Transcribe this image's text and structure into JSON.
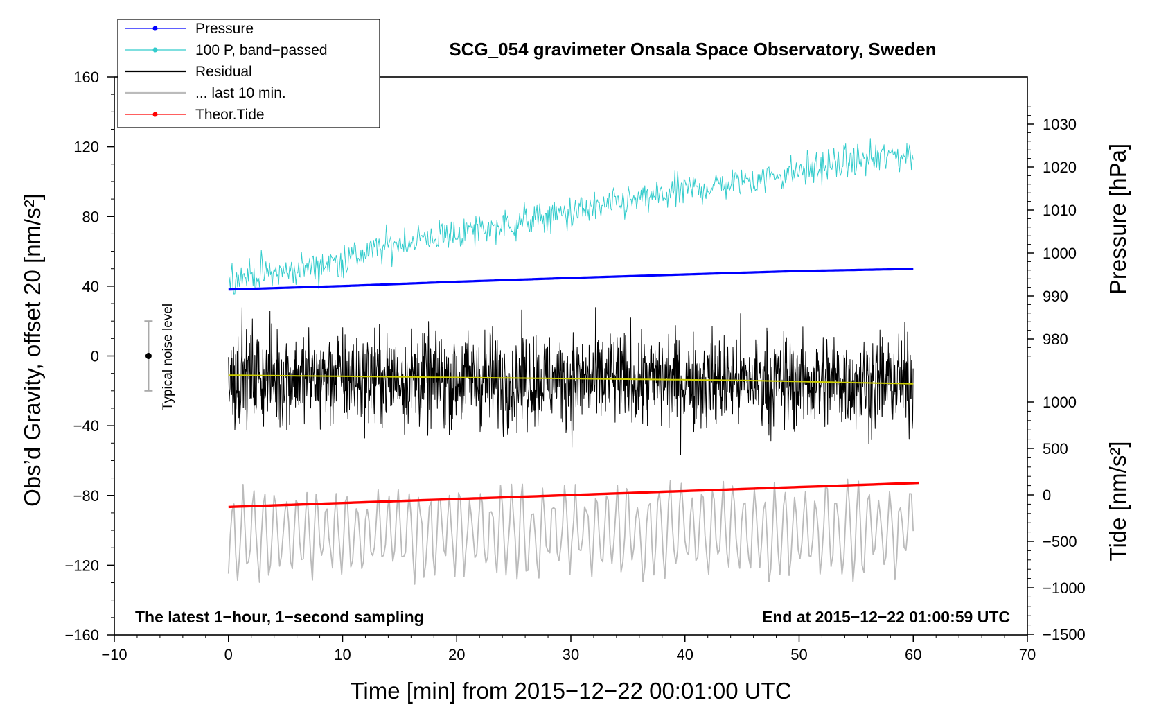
{
  "chart_data": {
    "type": "line",
    "title": "SCG_054 gravimeter Onsala Space Observatory, Sweden",
    "xlabel": "Time [min] from 2015−12−22 00:01:00 UTC",
    "ylabel": "Obs’d Gravity, offset 20 [nm/s²]",
    "xlim": [
      -10,
      70
    ],
    "ylim": [
      -160,
      160
    ],
    "x_ticks": [
      "−10",
      "0",
      "10",
      "20",
      "30",
      "40",
      "50",
      "60",
      "70"
    ],
    "y_ticks": [
      "160",
      "120",
      "80",
      "40",
      "0",
      "−40",
      "−80",
      "−120",
      "−160"
    ],
    "pressure_axis": {
      "label": "Pressure [hPa]",
      "ticks": [
        "1030",
        "1020",
        "1010",
        "1000",
        "990",
        "980"
      ],
      "values": [
        1030,
        1020,
        1010,
        1000,
        990,
        980
      ]
    },
    "tide_axis": {
      "label": "Tide [nm/s²]",
      "ticks": [
        "1000",
        "500",
        "0",
        "−500",
        "−1000",
        "−1500"
      ],
      "values": [
        1000,
        500,
        0,
        -500,
        -1000,
        -1500
      ]
    },
    "legend": [
      {
        "name": "Pressure",
        "color": "#0000ff",
        "marker": true
      },
      {
        "name": "100 P, band−passed",
        "color": "#33cccc",
        "marker": true
      },
      {
        "name": "Residual",
        "color": "#000000",
        "marker": false
      },
      {
        "name": "... last 10 min.",
        "color": "#bbbbbb",
        "marker": false
      },
      {
        "name": "Theor.Tide",
        "color": "#ff0000",
        "marker": true
      }
    ],
    "annotations": {
      "left": "The latest 1−hour, 1−second sampling",
      "right": "End at 2015−12−22 01:00:59 UTC",
      "noise": "Typical noise level"
    },
    "noise_bar": {
      "x": -7,
      "y": 0,
      "ymin": -20,
      "ymax": 20
    },
    "series": [
      {
        "name": "Pressure",
        "axis": "pressure_hPa",
        "color": "#0000ff",
        "x": [
          0,
          10,
          20,
          30,
          40,
          50,
          60
        ],
        "values": [
          991.5,
          992.3,
          993.3,
          994.2,
          995.0,
          995.8,
          996.3
        ]
      },
      {
        "name": "100 P, band−passed",
        "axis": "gravity_nm_s2",
        "color": "#33cccc",
        "x": [
          0,
          5,
          10,
          15,
          20,
          25,
          30,
          35,
          40,
          45,
          50,
          55,
          60
        ],
        "values": [
          45,
          48,
          55,
          65,
          70,
          76,
          82,
          88,
          95,
          100,
          106,
          112,
          116
        ],
        "noise_amplitude": 8
      },
      {
        "name": "Residual",
        "axis": "gravity_nm_s2",
        "color": "#000000",
        "x": [
          0,
          60
        ],
        "values": [
          -12,
          -15
        ],
        "noise_amplitude": 25
      },
      {
        "name": "Residual smoothed",
        "axis": "gravity_nm_s2",
        "color": "#cccc00",
        "x": [
          0,
          15,
          30,
          45,
          60
        ],
        "values": [
          -11,
          -12,
          -13,
          -14,
          -16
        ]
      },
      {
        "name": "... last 10 min.",
        "axis": "gravity_nm_s2",
        "color": "#bbbbbb",
        "x": [
          0,
          60
        ],
        "values": [
          -102,
          -100
        ],
        "noise_amplitude": 22
      },
      {
        "name": "Theor.Tide",
        "axis": "tide_nm_s2",
        "color": "#ff0000",
        "x": [
          0,
          60.5
        ],
        "values": [
          -130,
          130
        ]
      }
    ]
  }
}
